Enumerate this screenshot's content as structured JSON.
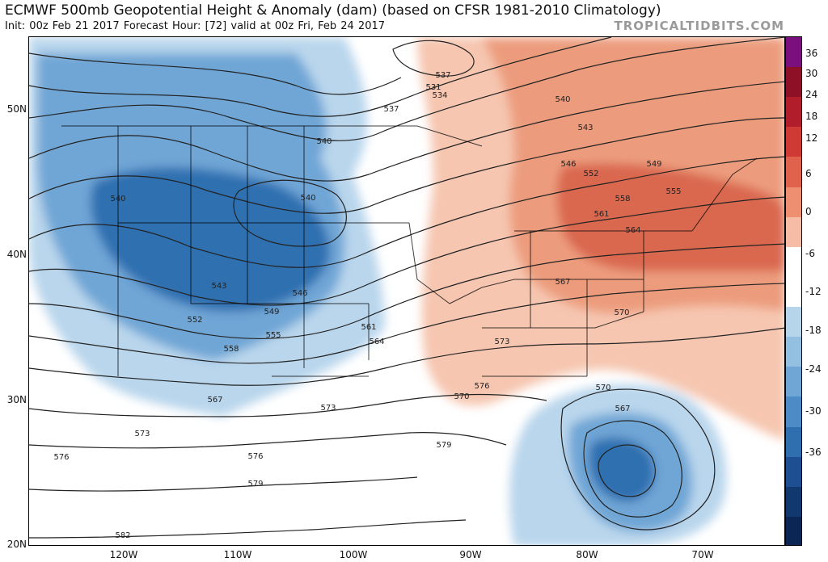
{
  "header": {
    "title": "ECMWF 500mb Geopotential Height & Anomaly (dam) (based on CFSR 1981-2010 Climatology)",
    "subtitle": "Init: 00z Feb 21 2017   Forecast Hour: [72]   valid at 00z Fri, Feb 24 2017",
    "watermark": "TROPICALTIDBITS.COM"
  },
  "map": {
    "lat_labels": [
      "50N",
      "40N",
      "30N",
      "20N"
    ],
    "lon_labels": [
      "120W",
      "110W",
      "100W",
      "90W",
      "80W",
      "70W"
    ],
    "contour_labels": [
      "531",
      "534",
      "537",
      "537",
      "540",
      "540",
      "540",
      "540",
      "543",
      "543",
      "546",
      "546",
      "549",
      "549",
      "552",
      "552",
      "555",
      "555",
      "558",
      "558",
      "561",
      "561",
      "564",
      "564",
      "567",
      "567",
      "567",
      "570",
      "570",
      "570",
      "573",
      "573",
      "573",
      "576",
      "576",
      "576",
      "579",
      "579",
      "582"
    ],
    "colors": {
      "negative_strong": "#2f6fb0",
      "negative_mid": "#6fa6d6",
      "negative_light": "#b9d6ec",
      "positive_light": "#f6c6b0",
      "positive_mid": "#ec9c7d",
      "positive_strong": "#d9674f",
      "contour": "#222222",
      "border": "#000000"
    }
  },
  "colorbar": {
    "tick_labels": [
      "36",
      "30",
      "24",
      "18",
      "12",
      "6",
      "0",
      "-6",
      "-12",
      "-18",
      "-24",
      "-30",
      "-36"
    ],
    "colors": [
      "#7b0f7e",
      "#8e1026",
      "#b21d2b",
      "#cf3a35",
      "#e0624c",
      "#ee8f72",
      "#f7bca5",
      "#ffffff",
      "#ffffff",
      "#b7d5ea",
      "#93bfe0",
      "#6fa6d6",
      "#4d8bc6",
      "#2f6fb0",
      "#1e4f92",
      "#123870",
      "#0b2554"
    ]
  }
}
